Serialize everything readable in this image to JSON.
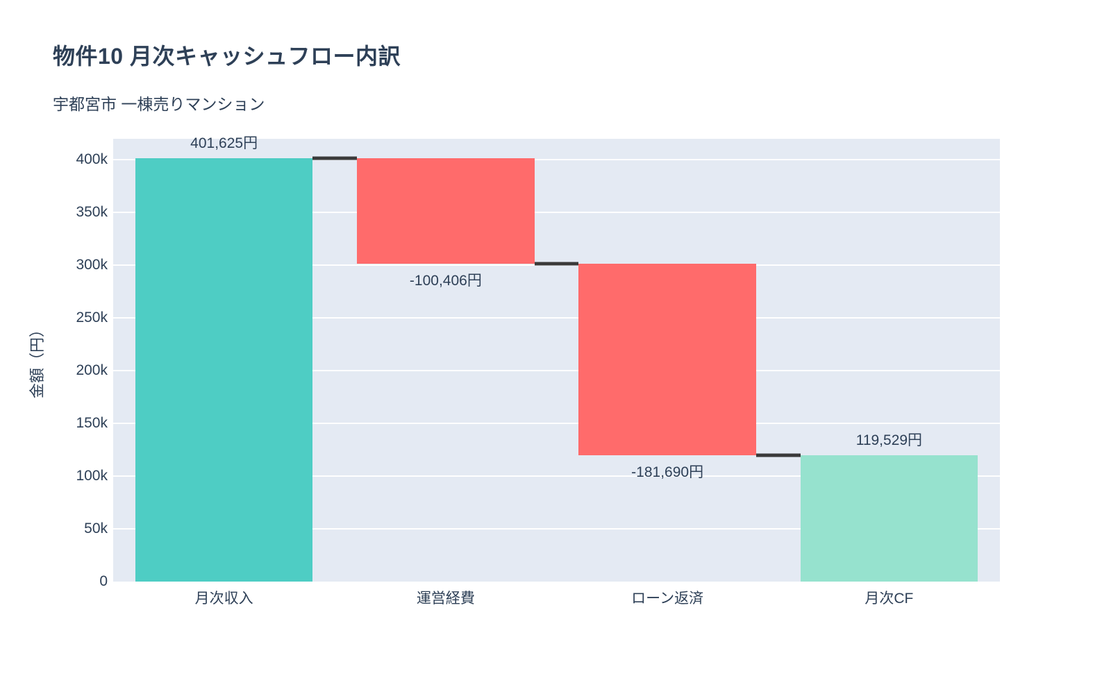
{
  "chart_data": {
    "type": "waterfall",
    "title": "物件10 月次キャッシュフロー内訳",
    "subtitle": "宇都宮市 一棟売りマンション",
    "ylabel": "金額（円）",
    "xlabel": "",
    "categories": [
      "月次収入",
      "運営経費",
      "ローン返済",
      "月次CF"
    ],
    "measures": [
      "relative",
      "relative",
      "relative",
      "total"
    ],
    "values": [
      401625,
      -100406,
      -181690,
      119529
    ],
    "bar_labels": [
      "401,625円",
      "-100,406円",
      "-181,690円",
      "119,529円"
    ],
    "running_totals": [
      401625,
      301219,
      119529,
      119529
    ],
    "ylim": [
      0,
      419737
    ],
    "yticks": [
      {
        "value": 0,
        "label": "0"
      },
      {
        "value": 50000,
        "label": "50k"
      },
      {
        "value": 100000,
        "label": "100k"
      },
      {
        "value": 150000,
        "label": "150k"
      },
      {
        "value": 200000,
        "label": "200k"
      },
      {
        "value": 250000,
        "label": "250k"
      },
      {
        "value": 300000,
        "label": "300k"
      },
      {
        "value": 350000,
        "label": "350k"
      },
      {
        "value": 400000,
        "label": "400k"
      }
    ],
    "grid": true,
    "legend_position": "none",
    "colors": {
      "increasing": "#4ecdc4",
      "decreasing": "#ff6b6b",
      "total": "#96e2ce",
      "connector": "#3a3a3a",
      "plot_background": "#e4eaf3",
      "gridline": "#ffffff",
      "text": "#2e4057"
    }
  }
}
